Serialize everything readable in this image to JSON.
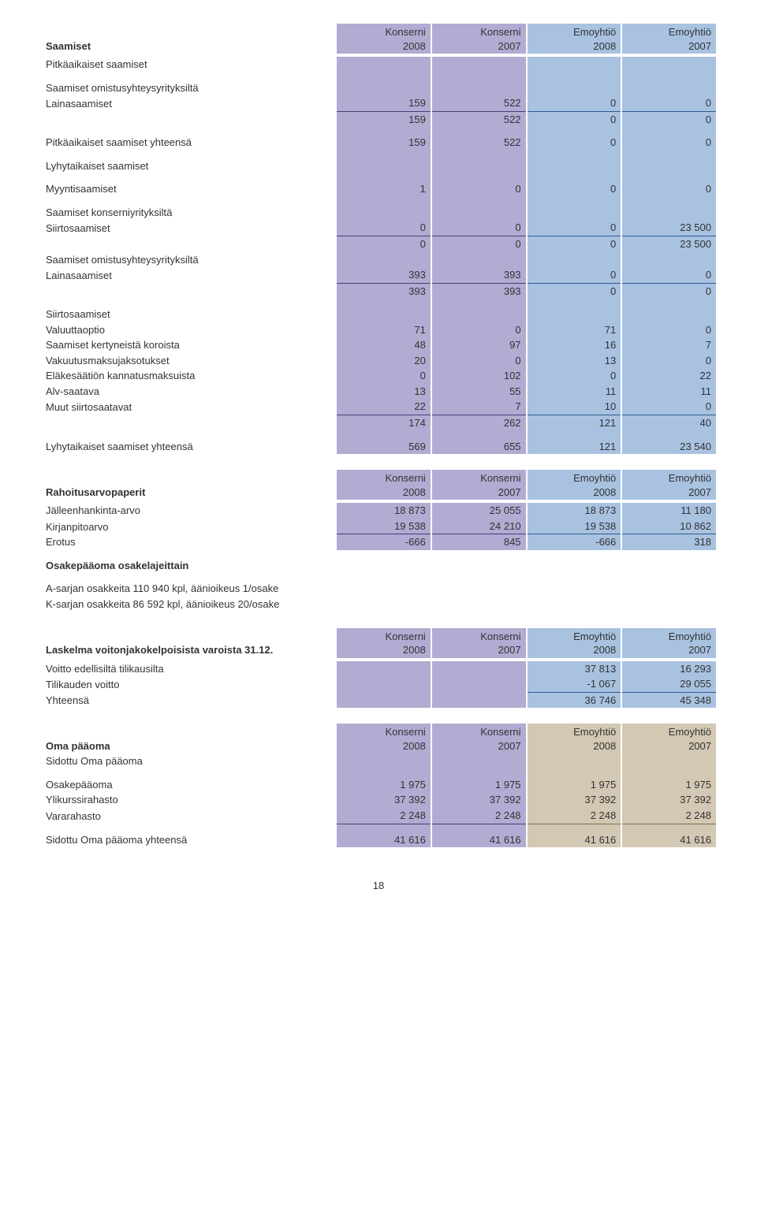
{
  "hdr": {
    "k8": "Konserni\n2008",
    "k7": "Konserni\n2007",
    "e8": "Emoyhtiö\n2008",
    "e7": "Emoyhtiö\n2007"
  },
  "saamiset": {
    "title": "Saamiset",
    "pitka_title": "Pitkäaikaiset saamiset",
    "omistus_title": "Saamiset omistusyhteysyrityksiltä",
    "laina": {
      "label": "Lainasaamiset",
      "c1": "159",
      "c2": "522",
      "c3": "0",
      "c4": "0"
    },
    "sub1": {
      "c1": "159",
      "c2": "522",
      "c3": "0",
      "c4": "0"
    },
    "pitka_yht": {
      "label": "Pitkäaikaiset saamiset yhteensä",
      "c1": "159",
      "c2": "522",
      "c3": "0",
      "c4": "0"
    },
    "lyhyt_title": "Lyhytaikaiset saamiset",
    "myynti": {
      "label": "Myyntisaamiset",
      "c1": "1",
      "c2": "0",
      "c3": "0",
      "c4": "0"
    },
    "konserniyr_title": "Saamiset konserniyrityksiltä",
    "siirto1": {
      "label": "Siirtosaamiset",
      "c1": "0",
      "c2": "0",
      "c3": "0",
      "c4": "23 500"
    },
    "sub2": {
      "c1": "0",
      "c2": "0",
      "c3": "0",
      "c4": "23 500"
    },
    "omistus2_title": "Saamiset omistusyhteysyrityksiltä",
    "laina2": {
      "label": "Lainasaamiset",
      "c1": "393",
      "c2": "393",
      "c3": "0",
      "c4": "0"
    },
    "sub3": {
      "c1": "393",
      "c2": "393",
      "c3": "0",
      "c4": "0"
    },
    "siirto_title": "Siirtosaamiset",
    "valuutta": {
      "label": "Valuuttaoptio",
      "c1": "71",
      "c2": "0",
      "c3": "71",
      "c4": "0"
    },
    "kerty": {
      "label": "Saamiset kertyneistä koroista",
      "c1": "48",
      "c2": "97",
      "c3": "16",
      "c4": "7"
    },
    "vakuutus": {
      "label": "Vakuutusmaksujaksotukset",
      "c1": "20",
      "c2": "0",
      "c3": "13",
      "c4": "0"
    },
    "elake": {
      "label": "Eläkesäätiön kannatusmaksuista",
      "c1": "0",
      "c2": "102",
      "c3": "0",
      "c4": "22"
    },
    "alv": {
      "label": "Alv-saatava",
      "c1": "13",
      "c2": "55",
      "c3": "11",
      "c4": "11"
    },
    "muut": {
      "label": "Muut siirtosaatavat",
      "c1": "22",
      "c2": "7",
      "c3": "10",
      "c4": "0"
    },
    "sub4": {
      "c1": "174",
      "c2": "262",
      "c3": "121",
      "c4": "40"
    },
    "lyhyt_yht": {
      "label": "Lyhytaikaiset saamiset yhteensä",
      "c1": "569",
      "c2": "655",
      "c3": "121",
      "c4": "23 540"
    }
  },
  "rahoitus": {
    "title": "Rahoitusarvopaperit",
    "jalleen": {
      "label": "Jälleenhankinta-arvo",
      "c1": "18 873",
      "c2": "25 055",
      "c3": "18 873",
      "c4": "11 180"
    },
    "kirjan": {
      "label": "Kirjanpitoarvo",
      "c1": "19 538",
      "c2": "24 210",
      "c3": "19 538",
      "c4": "10 862"
    },
    "erotus": {
      "label": "Erotus",
      "c1": "-666",
      "c2": "845",
      "c3": "-666",
      "c4": "318"
    }
  },
  "osake": {
    "title": "Osakepääoma osakelajeittain",
    "a": "A-sarjan osakkeita 110 940 kpl, äänioikeus 1/osake",
    "k": "K-sarjan osakkeita 86 592 kpl, äänioikeus 20/osake"
  },
  "laskelma": {
    "title": "Laskelma voitonjakokelpoisista varoista 31.12.",
    "voitto_ed": {
      "label": "Voitto edellisiltä tilikausilta",
      "c3": "37 813",
      "c4": "16 293"
    },
    "tili": {
      "label": "Tilikauden voitto",
      "c3": "-1 067",
      "c4": "29 055"
    },
    "yht": {
      "label": "Yhteensä",
      "c3": "36 746",
      "c4": "45 348"
    }
  },
  "oma": {
    "title": "Oma pääoma",
    "sidottu": "Sidottu Oma pääoma",
    "osake": {
      "label": "Osakepääoma",
      "c1": "1 975",
      "c2": "1 975",
      "c3": "1 975",
      "c4": "1 975"
    },
    "ylikurssi": {
      "label": "Ylikurssirahasto",
      "c1": "37 392",
      "c2": "37 392",
      "c3": "37 392",
      "c4": "37 392"
    },
    "vararahasto": {
      "label": "Vararahasto",
      "c1": "2 248",
      "c2": "2 248",
      "c3": "2 248",
      "c4": "2 248"
    },
    "yht": {
      "label": "Sidottu Oma pääoma yhteensä",
      "c1": "41 616",
      "c2": "41 616",
      "c3": "41 616",
      "c4": "41 616"
    }
  },
  "page": "18"
}
